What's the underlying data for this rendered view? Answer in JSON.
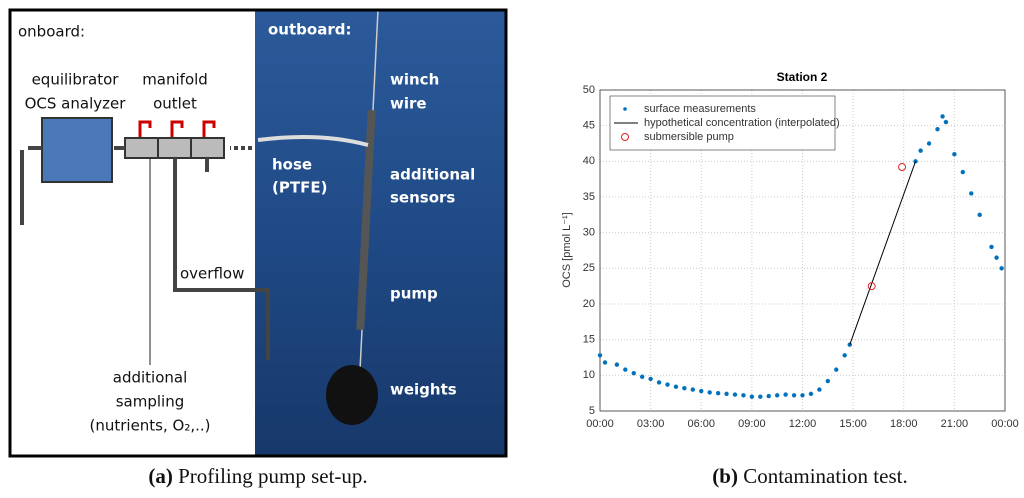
{
  "diagram": {
    "onboard": "onboard:",
    "outboard": "outboard:",
    "analyzer": [
      "equilibrator",
      "OCS analyzer"
    ],
    "manifold": [
      "manifold",
      "outlet"
    ],
    "overflow": "overflow",
    "sampling": [
      "additional",
      "sampling",
      "(nutrients, O₂,..)"
    ],
    "winch": [
      "winch",
      "wire"
    ],
    "hose": [
      "hose",
      "(PTFE)"
    ],
    "sensors": [
      "additional",
      "sensors"
    ],
    "pump": "pump",
    "weights": "weights"
  },
  "captions": [
    {
      "label": "(a)",
      "text": "Profiling pump set-up."
    },
    {
      "label": "(b)",
      "text": "Contamination test."
    }
  ],
  "chart_data": {
    "type": "scatter",
    "title": "Station 2",
    "ylabel": "OCS [pmol L⁻¹]",
    "xlim": [
      0,
      24
    ],
    "ylim": [
      5,
      50
    ],
    "xticks": [
      {
        "value": 0,
        "label": "00:00"
      },
      {
        "value": 3,
        "label": "03:00"
      },
      {
        "value": 6,
        "label": "06:00"
      },
      {
        "value": 9,
        "label": "09:00"
      },
      {
        "value": 12,
        "label": "12:00"
      },
      {
        "value": 15,
        "label": "15:00"
      },
      {
        "value": 18,
        "label": "18:00"
      },
      {
        "value": 21,
        "label": "21:00"
      },
      {
        "value": 24,
        "label": "00:00"
      }
    ],
    "yticks": [
      5,
      10,
      15,
      20,
      25,
      30,
      35,
      40,
      45,
      50
    ],
    "grid": true,
    "legend": "upper left",
    "series": [
      {
        "name": "surface measurements",
        "color": "#0072bd",
        "kind": "dots",
        "x": [
          0,
          0.3,
          1,
          1.5,
          2,
          2.5,
          3,
          3.5,
          4,
          4.5,
          5,
          5.5,
          6,
          6.5,
          7,
          7.5,
          8,
          8.5,
          9,
          9.5,
          10,
          10.5,
          11,
          11.5,
          12,
          12.5,
          13,
          13.5,
          14,
          14.5,
          14.8,
          18.7,
          19,
          19.5,
          20,
          20.3,
          20.5,
          21,
          21.5,
          22,
          22.5,
          23.2,
          23.5,
          23.8
        ],
        "values": [
          12.8,
          11.8,
          11.5,
          10.8,
          10.3,
          9.8,
          9.5,
          9.0,
          8.7,
          8.4,
          8.2,
          8.0,
          7.8,
          7.6,
          7.5,
          7.4,
          7.3,
          7.2,
          7.0,
          7.0,
          7.1,
          7.2,
          7.3,
          7.2,
          7.2,
          7.4,
          8.0,
          9.2,
          10.8,
          12.8,
          14.3,
          40,
          41.5,
          42.5,
          44.5,
          46.3,
          45.5,
          41,
          38.5,
          35.5,
          32.5,
          28,
          26.5,
          25
        ]
      },
      {
        "name": "hypothetical concentration (interpolated)",
        "color": "#000000",
        "kind": "line",
        "x": [
          14.8,
          18.7
        ],
        "values": [
          14.3,
          40
        ]
      },
      {
        "name": "submersible pump",
        "color": "#e02020",
        "kind": "circles",
        "x": [
          16.1,
          17.9
        ],
        "values": [
          22.5,
          39.2
        ]
      }
    ]
  }
}
